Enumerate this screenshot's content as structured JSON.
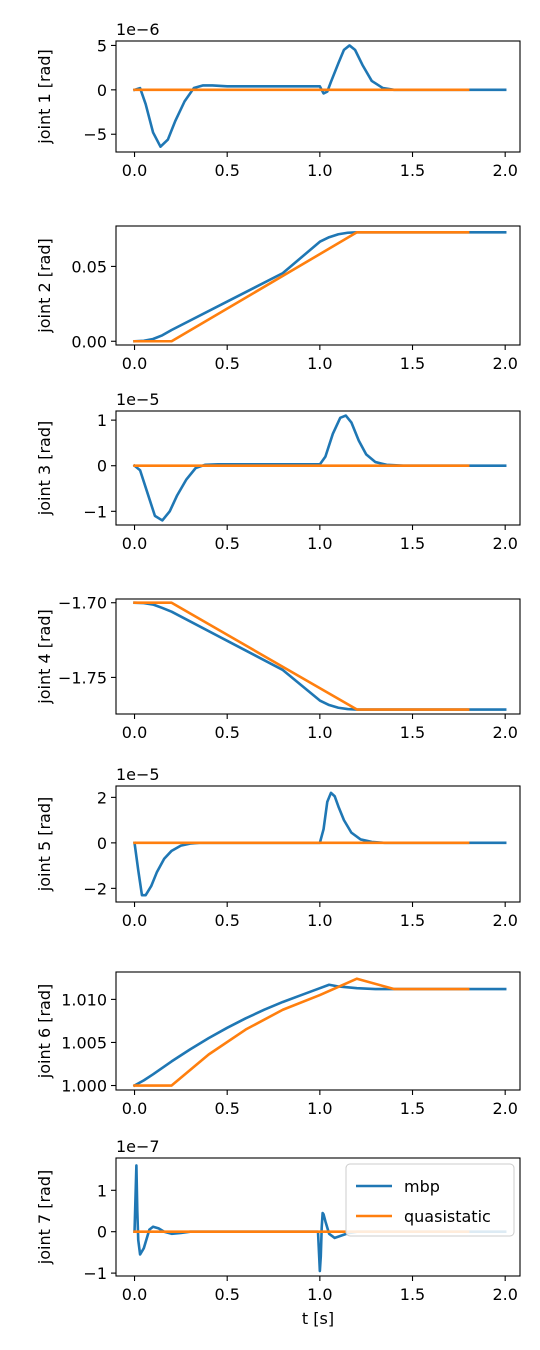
{
  "colors": {
    "mbp": "#1f77b4",
    "quasistatic": "#ff7f0e",
    "axes": "#000000"
  },
  "chart_data": [
    {
      "type": "line",
      "ylabel": "joint 1 [rad]",
      "offset_text": "1e−6",
      "xlim": [
        -0.1,
        2.08
      ],
      "ylim": [
        -7.0,
        5.5
      ],
      "xticks": [
        0.0,
        0.5,
        1.0,
        1.5,
        2.0
      ],
      "xtick_labels": [
        "0.0",
        "0.5",
        "1.0",
        "1.5",
        "2.0"
      ],
      "yticks": [
        5,
        0,
        -5
      ],
      "ytick_labels": [
        "5",
        "0",
        "−5"
      ],
      "series": [
        {
          "name": "mbp",
          "x": [
            0,
            0.03,
            0.06,
            0.1,
            0.14,
            0.18,
            0.22,
            0.27,
            0.32,
            0.37,
            0.42,
            0.5,
            0.7,
            0.9,
            1.0,
            1.02,
            1.04,
            1.06,
            1.1,
            1.13,
            1.16,
            1.19,
            1.23,
            1.28,
            1.34,
            1.4,
            1.5,
            1.7,
            2.0
          ],
          "y": [
            0,
            0.2,
            -1.6,
            -4.8,
            -6.4,
            -5.6,
            -3.5,
            -1.3,
            0.2,
            0.5,
            0.5,
            0.4,
            0.4,
            0.4,
            0.4,
            -0.4,
            -0.2,
            0.9,
            3.0,
            4.5,
            5.0,
            4.5,
            2.8,
            1.0,
            0.2,
            0.0,
            0.0,
            0.0,
            0.0
          ]
        },
        {
          "name": "quasistatic",
          "x": [
            0,
            0.5,
            1.0,
            1.5,
            1.8
          ],
          "y": [
            0,
            0,
            0,
            0,
            0
          ]
        }
      ]
    },
    {
      "type": "line",
      "ylabel": "joint 2 [rad]",
      "offset_text": "",
      "xlim": [
        -0.1,
        2.08
      ],
      "ylim": [
        -0.0025,
        0.077
      ],
      "xticks": [
        0.0,
        0.5,
        1.0,
        1.5,
        2.0
      ],
      "xtick_labels": [
        "0.0",
        "0.5",
        "1.0",
        "1.5",
        "2.0"
      ],
      "yticks": [
        0.05,
        0.0
      ],
      "ytick_labels": [
        "0.05",
        "0.00"
      ],
      "series": [
        {
          "name": "mbp",
          "x": [
            0,
            0.05,
            0.1,
            0.15,
            0.2,
            0.5,
            0.8,
            1.0,
            1.05,
            1.1,
            1.15,
            1.2,
            1.5,
            2.0
          ],
          "y": [
            0,
            0.0003,
            0.0015,
            0.004,
            0.0075,
            0.0265,
            0.0455,
            0.0665,
            0.0695,
            0.0715,
            0.0725,
            0.0728,
            0.0728,
            0.0728
          ]
        },
        {
          "name": "quasistatic",
          "x": [
            0,
            0.2,
            1.2,
            1.5,
            1.8
          ],
          "y": [
            0,
            0,
            0.0728,
            0.0728,
            0.0728
          ]
        }
      ]
    },
    {
      "type": "line",
      "ylabel": "joint 3 [rad]",
      "offset_text": "1e−5",
      "xlim": [
        -0.1,
        2.08
      ],
      "ylim": [
        -1.3,
        1.2
      ],
      "xticks": [
        0.0,
        0.5,
        1.0,
        1.5,
        2.0
      ],
      "xtick_labels": [
        "0.0",
        "0.5",
        "1.0",
        "1.5",
        "2.0"
      ],
      "yticks": [
        1,
        0,
        -1
      ],
      "ytick_labels": [
        "1",
        "0",
        "−1"
      ],
      "series": [
        {
          "name": "mbp",
          "x": [
            0,
            0.03,
            0.07,
            0.11,
            0.15,
            0.19,
            0.23,
            0.28,
            0.33,
            0.38,
            0.45,
            0.6,
            0.8,
            1.0,
            1.03,
            1.07,
            1.11,
            1.14,
            1.17,
            1.21,
            1.25,
            1.3,
            1.36,
            1.45,
            1.6,
            2.0
          ],
          "y": [
            0,
            -0.1,
            -0.6,
            -1.1,
            -1.2,
            -1.0,
            -0.65,
            -0.3,
            -0.05,
            0.02,
            0.03,
            0.03,
            0.03,
            0.03,
            0.2,
            0.7,
            1.05,
            1.1,
            0.95,
            0.55,
            0.25,
            0.08,
            0.02,
            0.0,
            0.0,
            0.0
          ]
        },
        {
          "name": "quasistatic",
          "x": [
            0,
            0.5,
            1.0,
            1.5,
            1.8
          ],
          "y": [
            0,
            0,
            0,
            0,
            0
          ]
        }
      ]
    },
    {
      "type": "line",
      "ylabel": "joint 4 [rad]",
      "offset_text": "",
      "xlim": [
        -0.1,
        2.08
      ],
      "ylim": [
        -1.7745,
        -1.6975
      ],
      "xticks": [
        0.0,
        0.5,
        1.0,
        1.5,
        2.0
      ],
      "xtick_labels": [
        "0.0",
        "0.5",
        "1.0",
        "1.5",
        "2.0"
      ],
      "yticks": [
        -1.7,
        -1.75
      ],
      "ytick_labels": [
        "−1.70",
        "−1.75"
      ],
      "series": [
        {
          "name": "mbp",
          "x": [
            0,
            0.05,
            0.1,
            0.15,
            0.2,
            0.5,
            0.8,
            1.0,
            1.05,
            1.1,
            1.15,
            1.2,
            1.5,
            2.0
          ],
          "y": [
            -1.7,
            -1.7002,
            -1.7012,
            -1.7035,
            -1.706,
            -1.7255,
            -1.745,
            -1.7655,
            -1.7685,
            -1.7703,
            -1.7712,
            -1.7715,
            -1.7715,
            -1.7715
          ]
        },
        {
          "name": "quasistatic",
          "x": [
            0,
            0.2,
            1.2,
            1.5,
            1.8
          ],
          "y": [
            -1.7,
            -1.7,
            -1.7715,
            -1.7715,
            -1.7715
          ]
        }
      ]
    },
    {
      "type": "line",
      "ylabel": "joint 5 [rad]",
      "offset_text": "1e−5",
      "xlim": [
        -0.1,
        2.08
      ],
      "ylim": [
        -2.6,
        2.5
      ],
      "xticks": [
        0.0,
        0.5,
        1.0,
        1.5,
        2.0
      ],
      "xtick_labels": [
        "0.0",
        "0.5",
        "1.0",
        "1.5",
        "2.0"
      ],
      "yticks": [
        2,
        0,
        -2
      ],
      "ytick_labels": [
        "2",
        "0",
        "−2"
      ],
      "series": [
        {
          "name": "mbp",
          "x": [
            0,
            0.02,
            0.04,
            0.06,
            0.09,
            0.12,
            0.16,
            0.2,
            0.25,
            0.3,
            0.35,
            0.5,
            0.8,
            1.0,
            1.02,
            1.04,
            1.06,
            1.08,
            1.1,
            1.13,
            1.17,
            1.22,
            1.28,
            1.35,
            1.5,
            2.0
          ],
          "y": [
            0,
            -1.2,
            -2.3,
            -2.3,
            -1.9,
            -1.3,
            -0.7,
            -0.35,
            -0.12,
            -0.03,
            0.0,
            0.0,
            0.0,
            0.0,
            0.6,
            1.8,
            2.2,
            2.05,
            1.6,
            1.0,
            0.45,
            0.15,
            0.04,
            0.0,
            0.0,
            0.0
          ]
        },
        {
          "name": "quasistatic",
          "x": [
            0,
            0.5,
            1.0,
            1.5,
            1.8
          ],
          "y": [
            0,
            0,
            0,
            0,
            0
          ]
        }
      ]
    },
    {
      "type": "line",
      "ylabel": "joint 6 [rad]",
      "offset_text": "",
      "xlim": [
        -0.1,
        2.08
      ],
      "ylim": [
        0.99948,
        1.01318
      ],
      "xticks": [
        0.0,
        0.5,
        1.0,
        1.5,
        2.0
      ],
      "xtick_labels": [
        "0.0",
        "0.5",
        "1.0",
        "1.5",
        "2.0"
      ],
      "yticks": [
        1.01,
        1.005,
        1.0
      ],
      "ytick_labels": [
        "1.010",
        "1.005",
        "1.000"
      ],
      "series": [
        {
          "name": "mbp",
          "x": [
            0,
            0.05,
            0.1,
            0.2,
            0.3,
            0.4,
            0.5,
            0.6,
            0.7,
            0.8,
            0.9,
            1.0,
            1.05,
            1.1,
            1.2,
            1.3,
            1.5,
            2.0
          ],
          "y": [
            1.0,
            1.0006,
            1.0013,
            1.0028,
            1.0042,
            1.0055,
            1.0067,
            1.0078,
            1.0088,
            1.0097,
            1.0105,
            1.0113,
            1.0117,
            1.0115,
            1.0113,
            1.0112,
            1.0112,
            1.0112
          ]
        },
        {
          "name": "quasistatic",
          "x": [
            0,
            0.2,
            0.4,
            0.6,
            0.8,
            1.0,
            1.2,
            1.4,
            1.6,
            1.8
          ],
          "y": [
            1.0,
            1.0,
            1.0036,
            1.0065,
            1.0088,
            1.0105,
            1.0124,
            1.0112,
            1.0112,
            1.0112
          ]
        }
      ]
    },
    {
      "type": "line",
      "ylabel": "joint 7 [rad]",
      "xlabel": "t [s]",
      "offset_text": "1e−7",
      "xlim": [
        -0.1,
        2.08
      ],
      "ylim": [
        -1.07,
        1.78
      ],
      "xticks": [
        0.0,
        0.5,
        1.0,
        1.5,
        2.0
      ],
      "xtick_labels": [
        "0.0",
        "0.5",
        "1.0",
        "1.5",
        "2.0"
      ],
      "yticks": [
        1,
        0,
        -1
      ],
      "ytick_labels": [
        "1",
        "0",
        "−1"
      ],
      "legend": {
        "position": "top-right",
        "entries": [
          "mbp",
          "quasistatic"
        ]
      },
      "series": [
        {
          "name": "mbp",
          "x": [
            0,
            0.005,
            0.01,
            0.015,
            0.02,
            0.03,
            0.05,
            0.08,
            0.1,
            0.13,
            0.16,
            0.2,
            0.25,
            0.3,
            0.4,
            0.5,
            0.7,
            0.9,
            0.99,
            1.0,
            1.005,
            1.01,
            1.015,
            1.02,
            1.03,
            1.05,
            1.08,
            1.1,
            1.15,
            1.2,
            1.3,
            1.5,
            2.0
          ],
          "y": [
            0,
            0.8,
            1.6,
            0.5,
            -0.2,
            -0.55,
            -0.4,
            0.05,
            0.12,
            0.08,
            0.0,
            -0.05,
            -0.03,
            0.0,
            0.0,
            0.0,
            0.0,
            0.0,
            0.0,
            -0.95,
            -0.6,
            0.1,
            0.45,
            0.42,
            0.25,
            -0.05,
            -0.15,
            -0.12,
            -0.04,
            0.0,
            0.0,
            0.0,
            0.0
          ]
        },
        {
          "name": "quasistatic",
          "x": [
            0,
            0.5,
            1.0,
            1.5,
            1.8
          ],
          "y": [
            0,
            0,
            0,
            0,
            0
          ]
        }
      ]
    }
  ]
}
